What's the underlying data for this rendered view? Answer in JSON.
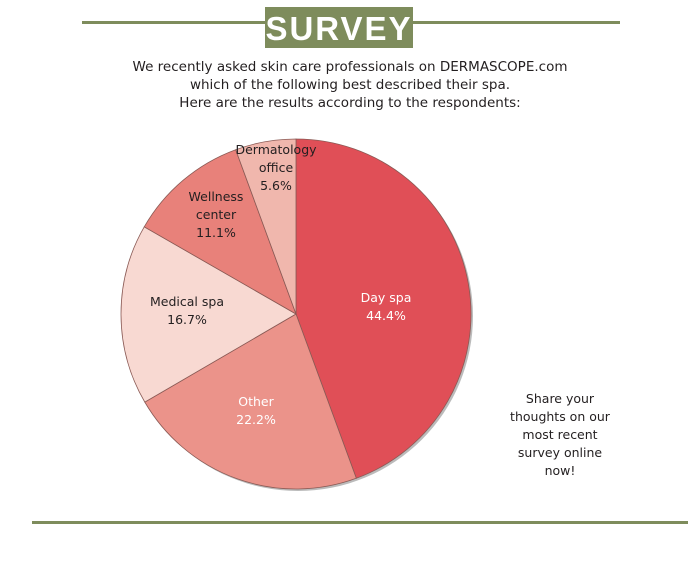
{
  "header": {
    "title": "SURVEY",
    "accent_color": "#7e8c5c"
  },
  "intro": [
    "We recently asked skin care professionals on DERMASCOPE.com",
    "which of the following best described their spa.",
    "Here are the results according to the respondents:"
  ],
  "chart_data": {
    "type": "pie",
    "start": "top",
    "direction": "clockwise",
    "slices": [
      {
        "label": [
          "Day spa"
        ],
        "value": 44.4,
        "display": "44.4%",
        "color": "#e04f57",
        "text_color": "#ffffff"
      },
      {
        "label": [
          "Other"
        ],
        "value": 22.2,
        "display": "22.2%",
        "color": "#eb938a",
        "text_color": "#ffffff"
      },
      {
        "label": [
          "Medical spa"
        ],
        "value": 16.7,
        "display": "16.7%",
        "color": "#f8d9d2",
        "text_color": "#231f20"
      },
      {
        "label": [
          "Wellness",
          "center"
        ],
        "value": 11.1,
        "display": "11.1%",
        "color": "#e8817a",
        "text_color": "#231f20"
      },
      {
        "label": [
          "Dermatology",
          "office"
        ],
        "value": 5.6,
        "display": "5.6%",
        "color": "#f0b7ad",
        "text_color": "#231f20"
      }
    ]
  },
  "share": [
    "Share your",
    "thoughts on our",
    "most recent",
    "survey online",
    "now!"
  ]
}
